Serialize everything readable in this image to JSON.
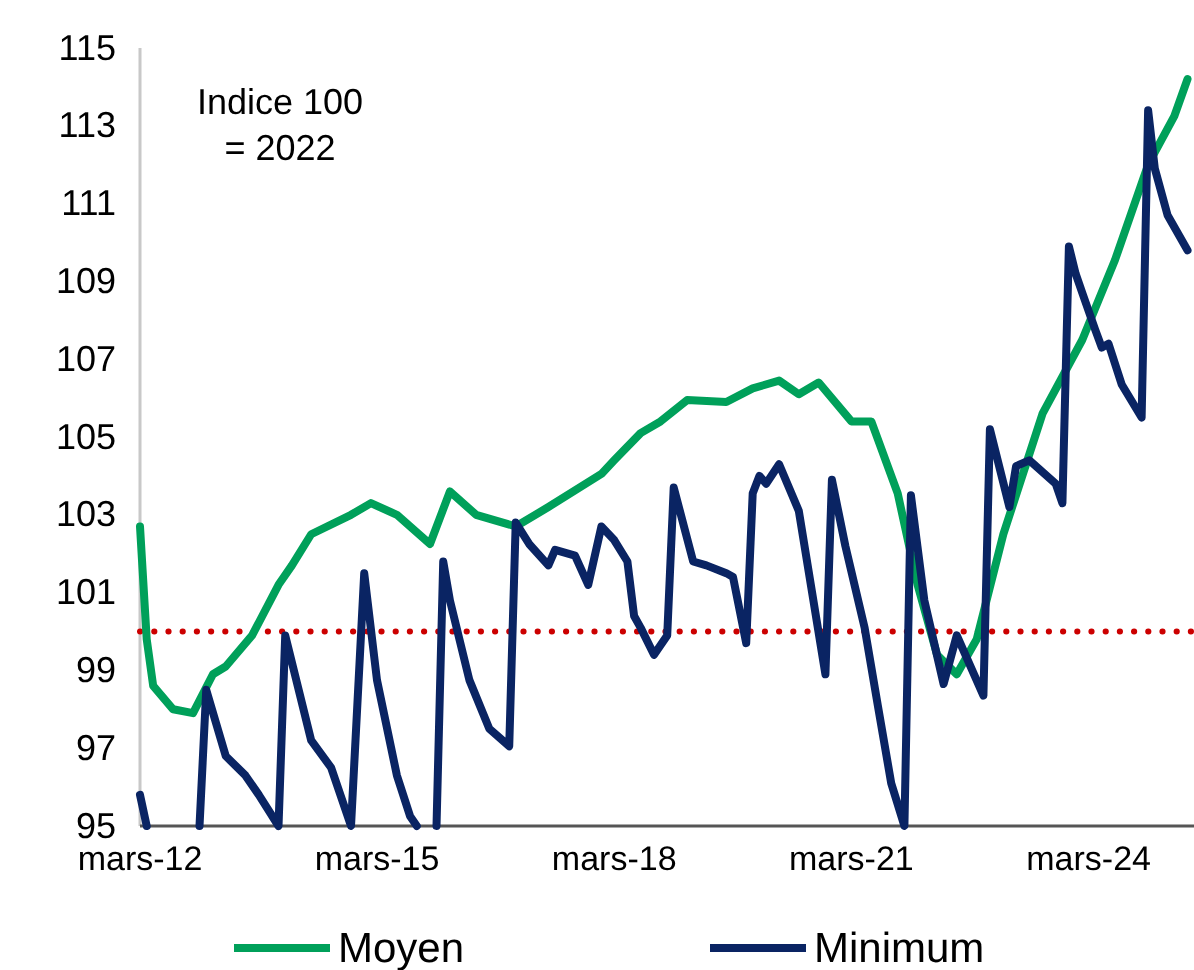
{
  "chart_data": {
    "type": "line",
    "annotations": [
      "Indice 100\n= 2022"
    ],
    "xlim": [
      "2012-03",
      "2025-07"
    ],
    "xticks": [
      {
        "value": "2012-03",
        "label": "mars-12"
      },
      {
        "value": "2015-03",
        "label": "mars-15"
      },
      {
        "value": "2018-03",
        "label": "mars-18"
      },
      {
        "value": "2021-03",
        "label": "mars-21"
      },
      {
        "value": "2024-03",
        "label": "mars-24"
      }
    ],
    "ylim": [
      95,
      115
    ],
    "yticks": [
      95,
      97,
      99,
      101,
      103,
      105,
      107,
      109,
      111,
      113,
      115
    ],
    "grid": false,
    "legend": "bottom",
    "marker": "none",
    "line_style": "solid",
    "ref_lines": [
      {
        "axis": "y",
        "value": 100,
        "label": null,
        "color": "#cc0000",
        "line_style": "dotted"
      }
    ],
    "series": [
      {
        "name": "Moyen",
        "color": "#00a05a",
        "x": [
          "2012-03",
          "2012-04",
          "2012-05",
          "2012-08",
          "2012-11",
          "2013-02",
          "2013-04",
          "2013-08",
          "2013-12",
          "2014-02",
          "2014-05",
          "2014-11",
          "2015-02",
          "2015-06",
          "2015-11",
          "2016-02",
          "2016-06",
          "2016-12",
          "2017-05",
          "2018-01",
          "2018-03",
          "2018-07",
          "2018-10",
          "2019-02",
          "2019-08",
          "2019-12",
          "2020-04",
          "2020-07",
          "2020-10",
          "2021-03",
          "2021-06",
          "2021-10",
          "2022-01",
          "2022-04",
          "2022-07",
          "2022-10",
          "2023-02",
          "2023-08",
          "2024-02",
          "2024-07",
          "2024-12",
          "2025-04",
          "2025-06"
        ],
        "values": [
          102.7,
          99.8,
          98.6,
          98.0,
          97.9,
          98.9,
          99.1,
          99.9,
          101.2,
          101.7,
          102.5,
          103.0,
          103.3,
          103.0,
          102.25,
          103.6,
          103.0,
          102.7,
          103.2,
          104.05,
          104.4,
          105.1,
          105.4,
          105.95,
          105.9,
          106.25,
          106.45,
          106.1,
          106.4,
          105.4,
          105.4,
          103.55,
          101.2,
          99.4,
          98.9,
          99.8,
          102.5,
          105.6,
          107.5,
          109.55,
          112.0,
          113.25,
          114.2
        ]
      },
      {
        "name": "Minimum",
        "color": "#0a2463",
        "x": [
          "2012-03",
          "2012-04",
          "2012-08",
          "2012-12",
          "2013-01",
          "2013-04",
          "2013-07",
          "2013-09",
          "2013-12",
          "2014-01",
          "2014-05",
          "2014-08",
          "2014-11",
          "2015-01",
          "2015-03",
          "2015-06",
          "2015-08",
          "2015-09",
          "2015-10",
          "2015-12",
          "2016-01",
          "2016-02",
          "2016-05",
          "2016-08",
          "2016-11",
          "2016-12",
          "2017-02",
          "2017-05",
          "2017-06",
          "2017-09",
          "2017-11",
          "2018-01",
          "2018-03",
          "2018-05",
          "2018-06",
          "2018-07",
          "2018-09",
          "2018-11",
          "2018-12",
          "2019-03",
          "2019-05",
          "2019-08",
          "2019-09",
          "2019-11",
          "2019-12",
          "2020-01",
          "2020-02",
          "2020-04",
          "2020-07",
          "2020-11",
          "2020-12",
          "2021-02",
          "2021-05",
          "2021-07",
          "2021-09",
          "2021-11",
          "2021-12",
          "2022-02",
          "2022-05",
          "2022-07",
          "2022-11",
          "2022-12",
          "2023-03",
          "2023-04",
          "2023-06",
          "2023-10",
          "2023-11",
          "2023-12",
          "2024-01",
          "2024-02",
          "2024-04",
          "2024-05",
          "2024-06",
          "2024-08",
          "2024-11",
          "2024-12",
          "2025-01",
          "2025-03",
          "2025-06"
        ],
        "values": [
          95.8,
          95,
          null,
          95,
          98.5,
          96.8,
          96.3,
          95.8,
          95,
          99.9,
          97.2,
          96.5,
          95,
          101.5,
          98.75,
          96.3,
          95.25,
          95,
          null,
          95,
          101.8,
          100.8,
          98.75,
          97.5,
          97.05,
          102.8,
          102.25,
          101.7,
          102.1,
          101.95,
          101.2,
          102.7,
          102.35,
          101.8,
          100.4,
          100.1,
          99.4,
          99.9,
          103.7,
          101.8,
          101.7,
          101.5,
          101.4,
          99.7,
          103.55,
          104.0,
          103.8,
          104.3,
          103.1,
          98.9,
          103.9,
          102.2,
          100.1,
          98.1,
          96.1,
          95,
          103.5,
          100.8,
          98.65,
          99.9,
          98.35,
          105.2,
          103.2,
          104.25,
          104.4,
          103.8,
          103.3,
          109.9,
          109.2,
          108.7,
          107.75,
          107.3,
          107.4,
          106.35,
          105.5,
          113.4,
          111.9,
          110.7,
          109.8
        ]
      }
    ]
  }
}
